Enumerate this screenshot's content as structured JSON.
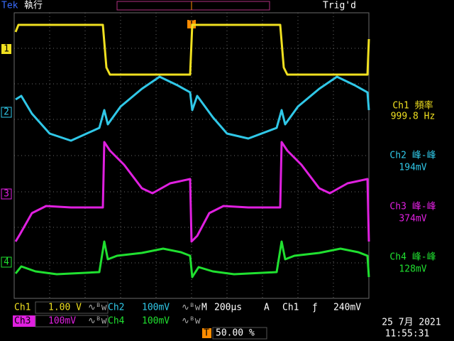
{
  "header": {
    "brand": "Tek",
    "state": "執行",
    "trigger_status": "Trig'd",
    "trigger_marker": "T"
  },
  "channel_markers": [
    "1",
    "2",
    "3",
    "4"
  ],
  "measurements": [
    {
      "label": "Ch1 頻率",
      "value": "999.8 Hz"
    },
    {
      "label": "Ch2 峰-峰",
      "value": "194mV"
    },
    {
      "label": "Ch3 峰-峰",
      "value": "374mV"
    },
    {
      "label": "Ch4 峰-峰",
      "value": "128mV"
    }
  ],
  "footer": {
    "ch1": {
      "name": "Ch1",
      "scale": "1.00 V"
    },
    "ch2": {
      "name": "Ch2",
      "scale": "100mV"
    },
    "ch3": {
      "name": "Ch3",
      "scale": "100mV"
    },
    "ch4": {
      "name": "Ch4",
      "scale": "100mV"
    },
    "bandwidth_symbol": "∿ᴮw",
    "timebase": {
      "label": "M",
      "value": "200µs"
    },
    "trigger": {
      "label": "A",
      "source": "Ch1",
      "slope": "ƒ",
      "level": "240mV"
    },
    "position": {
      "marker": "T",
      "value": "50.00 %"
    },
    "date": "25 7月 2021",
    "time": "11:55:31"
  }
}
